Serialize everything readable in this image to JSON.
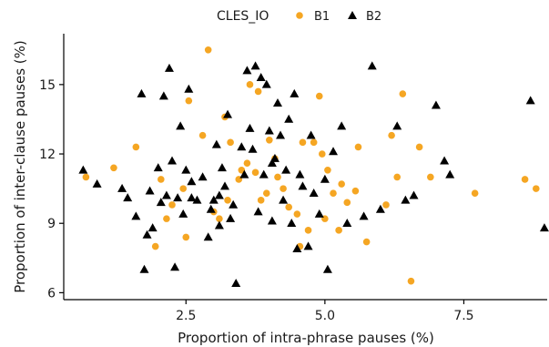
{
  "chart_data": {
    "type": "scatter",
    "title": "",
    "xlabel": "Proportion of intra-phrase pauses (%)",
    "ylabel": "Proportion of inter-clause pauses (%)",
    "xlim": [
      0.3,
      9.0
    ],
    "ylim": [
      5.7,
      17.2
    ],
    "xticks": [
      2.5,
      5.0,
      7.5
    ],
    "xtick_labels": [
      "2.5",
      "5.0",
      "7.5"
    ],
    "yticks": [
      6,
      9,
      12,
      15
    ],
    "ytick_labels": [
      "6",
      "9",
      "12",
      "15"
    ],
    "grid": false,
    "legend": {
      "title": "CLES_IO",
      "position": "top",
      "entries": [
        "B1",
        "B2"
      ]
    },
    "colors": {
      "B1": "#F5A623",
      "B2": "#000000"
    },
    "series": [
      {
        "name": "B1",
        "marker": "circle",
        "points": [
          [
            0.7,
            11.0
          ],
          [
            1.2,
            11.4
          ],
          [
            1.6,
            12.3
          ],
          [
            1.95,
            8.0
          ],
          [
            2.15,
            9.2
          ],
          [
            2.25,
            9.8
          ],
          [
            2.45,
            10.5
          ],
          [
            2.55,
            14.3
          ],
          [
            2.5,
            8.4
          ],
          [
            2.8,
            12.8
          ],
          [
            2.9,
            16.5
          ],
          [
            3.0,
            9.5
          ],
          [
            3.1,
            9.2
          ],
          [
            3.2,
            13.6
          ],
          [
            3.3,
            12.5
          ],
          [
            3.45,
            10.9
          ],
          [
            3.5,
            11.3
          ],
          [
            3.6,
            11.6
          ],
          [
            3.65,
            15.0
          ],
          [
            3.75,
            11.2
          ],
          [
            3.8,
            14.7
          ],
          [
            3.85,
            10.0
          ],
          [
            3.95,
            10.3
          ],
          [
            4.0,
            12.6
          ],
          [
            4.15,
            11.0
          ],
          [
            4.25,
            10.5
          ],
          [
            4.35,
            9.7
          ],
          [
            4.5,
            9.4
          ],
          [
            4.6,
            12.5
          ],
          [
            4.7,
            8.7
          ],
          [
            4.8,
            12.5
          ],
          [
            4.9,
            14.5
          ],
          [
            4.95,
            12.0
          ],
          [
            5.0,
            9.2
          ],
          [
            5.05,
            11.3
          ],
          [
            5.15,
            10.3
          ],
          [
            5.25,
            8.7
          ],
          [
            5.4,
            9.9
          ],
          [
            5.55,
            10.4
          ],
          [
            5.6,
            12.3
          ],
          [
            5.75,
            8.2
          ],
          [
            6.1,
            9.8
          ],
          [
            6.2,
            12.8
          ],
          [
            6.3,
            11.0
          ],
          [
            6.4,
            14.6
          ],
          [
            6.55,
            6.5
          ],
          [
            6.7,
            12.3
          ],
          [
            6.9,
            11.0
          ],
          [
            7.7,
            10.3
          ],
          [
            8.6,
            10.9
          ],
          [
            8.8,
            10.5
          ],
          [
            4.55,
            8.0
          ],
          [
            3.25,
            10.0
          ],
          [
            2.05,
            10.9
          ],
          [
            5.3,
            10.7
          ],
          [
            4.1,
            11.8
          ]
        ]
      },
      {
        "name": "B2",
        "marker": "triangle",
        "points": [
          [
            0.65,
            11.3
          ],
          [
            0.9,
            10.7
          ],
          [
            1.35,
            10.5
          ],
          [
            1.45,
            10.1
          ],
          [
            1.6,
            9.3
          ],
          [
            1.7,
            14.6
          ],
          [
            1.75,
            7.0
          ],
          [
            1.8,
            8.5
          ],
          [
            1.85,
            10.4
          ],
          [
            1.9,
            8.8
          ],
          [
            2.0,
            11.4
          ],
          [
            2.05,
            9.9
          ],
          [
            2.1,
            14.5
          ],
          [
            2.15,
            10.2
          ],
          [
            2.2,
            15.7
          ],
          [
            2.25,
            11.7
          ],
          [
            2.3,
            7.1
          ],
          [
            2.35,
            10.1
          ],
          [
            2.4,
            13.2
          ],
          [
            2.45,
            9.4
          ],
          [
            2.5,
            11.3
          ],
          [
            2.55,
            14.8
          ],
          [
            2.6,
            10.8
          ],
          [
            2.7,
            10.0
          ],
          [
            2.8,
            11.0
          ],
          [
            2.9,
            8.4
          ],
          [
            2.95,
            9.6
          ],
          [
            3.0,
            10.0
          ],
          [
            3.05,
            12.4
          ],
          [
            3.1,
            8.9
          ],
          [
            3.15,
            11.4
          ],
          [
            3.2,
            10.6
          ],
          [
            3.3,
            9.2
          ],
          [
            3.4,
            6.4
          ],
          [
            3.5,
            12.3
          ],
          [
            3.55,
            11.1
          ],
          [
            3.6,
            15.6
          ],
          [
            3.65,
            13.1
          ],
          [
            3.7,
            12.2
          ],
          [
            3.75,
            15.8
          ],
          [
            3.8,
            9.5
          ],
          [
            3.85,
            15.3
          ],
          [
            3.9,
            11.1
          ],
          [
            3.95,
            15.0
          ],
          [
            4.0,
            13.0
          ],
          [
            4.05,
            9.1
          ],
          [
            4.1,
            11.8
          ],
          [
            4.15,
            14.2
          ],
          [
            4.2,
            12.8
          ],
          [
            4.25,
            10.0
          ],
          [
            4.3,
            11.3
          ],
          [
            4.35,
            13.5
          ],
          [
            4.4,
            9.0
          ],
          [
            4.45,
            14.6
          ],
          [
            4.5,
            7.9
          ],
          [
            4.55,
            11.1
          ],
          [
            4.6,
            10.6
          ],
          [
            4.7,
            8.0
          ],
          [
            4.75,
            12.8
          ],
          [
            4.8,
            10.3
          ],
          [
            4.9,
            9.4
          ],
          [
            5.0,
            10.9
          ],
          [
            5.05,
            7.0
          ],
          [
            5.15,
            12.1
          ],
          [
            5.3,
            13.2
          ],
          [
            5.4,
            9.0
          ],
          [
            5.7,
            9.3
          ],
          [
            5.85,
            15.8
          ],
          [
            6.0,
            9.6
          ],
          [
            6.3,
            13.2
          ],
          [
            6.45,
            10.0
          ],
          [
            6.6,
            10.2
          ],
          [
            7.0,
            14.1
          ],
          [
            7.15,
            11.7
          ],
          [
            7.25,
            11.1
          ],
          [
            8.7,
            14.3
          ],
          [
            8.95,
            8.8
          ],
          [
            2.6,
            10.1
          ],
          [
            3.35,
            9.8
          ],
          [
            3.1,
            10.2
          ],
          [
            4.05,
            11.6
          ],
          [
            3.25,
            13.7
          ]
        ]
      }
    ]
  }
}
